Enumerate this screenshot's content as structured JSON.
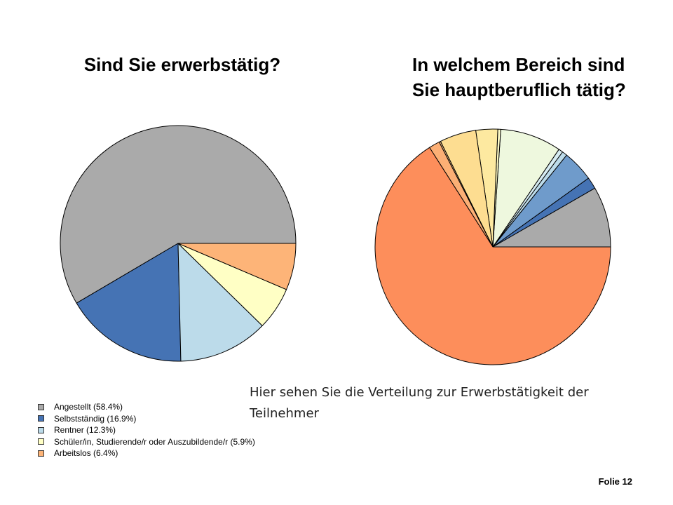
{
  "slide": {
    "number_label": "Folie 12"
  },
  "caption": "Hier sehen Sie die Verteilung zur Erwerbstätigkeit der Teilnehmer",
  "chart_data": [
    {
      "type": "pie",
      "title": "Sind Sie erwerbstätig?",
      "start_angle_deg": 0,
      "direction": "counterclockwise",
      "series": [
        {
          "label": "Angestellt (58.4%)",
          "value": 58.4,
          "color": "#aaaaaa"
        },
        {
          "label": "Selbstständig (16.9%)",
          "value": 16.9,
          "color": "#4573b4"
        },
        {
          "label": "Rentner (12.3%)",
          "value": 12.3,
          "color": "#bcdbea"
        },
        {
          "label": "Schüler/in, Studierende/r oder Auszubildende/r (5.9%)",
          "value": 5.9,
          "color": "#ffffc5"
        },
        {
          "label": "Arbeitslos (6.4%)",
          "value": 6.4,
          "color": "#fdb478"
        }
      ]
    },
    {
      "type": "pie",
      "title": "In welchem Bereich sind Sie hauptberuflich tätig?",
      "start_angle_deg": 0,
      "direction": "counterclockwise",
      "legend": "none",
      "series": [
        {
          "value": 8.3,
          "color": "#aaaaaa"
        },
        {
          "value": 1.6,
          "color": "#4573b4"
        },
        {
          "value": 4.3,
          "color": "#6f9bcb"
        },
        {
          "value": 0.7,
          "color": "#bcdbea"
        },
        {
          "value": 0.6,
          "color": "#d7ecf2"
        },
        {
          "value": 8.4,
          "color": "#eef8de"
        },
        {
          "value": 0.4,
          "color": "#fcf9c5"
        },
        {
          "value": 3.0,
          "color": "#fde9a0"
        },
        {
          "value": 5.0,
          "color": "#fddd91"
        },
        {
          "value": 0.2,
          "color": "#f9c184"
        },
        {
          "value": 1.5,
          "color": "#fcaf75"
        },
        {
          "value": 65.9,
          "color": "#fd8e5b"
        }
      ]
    }
  ]
}
